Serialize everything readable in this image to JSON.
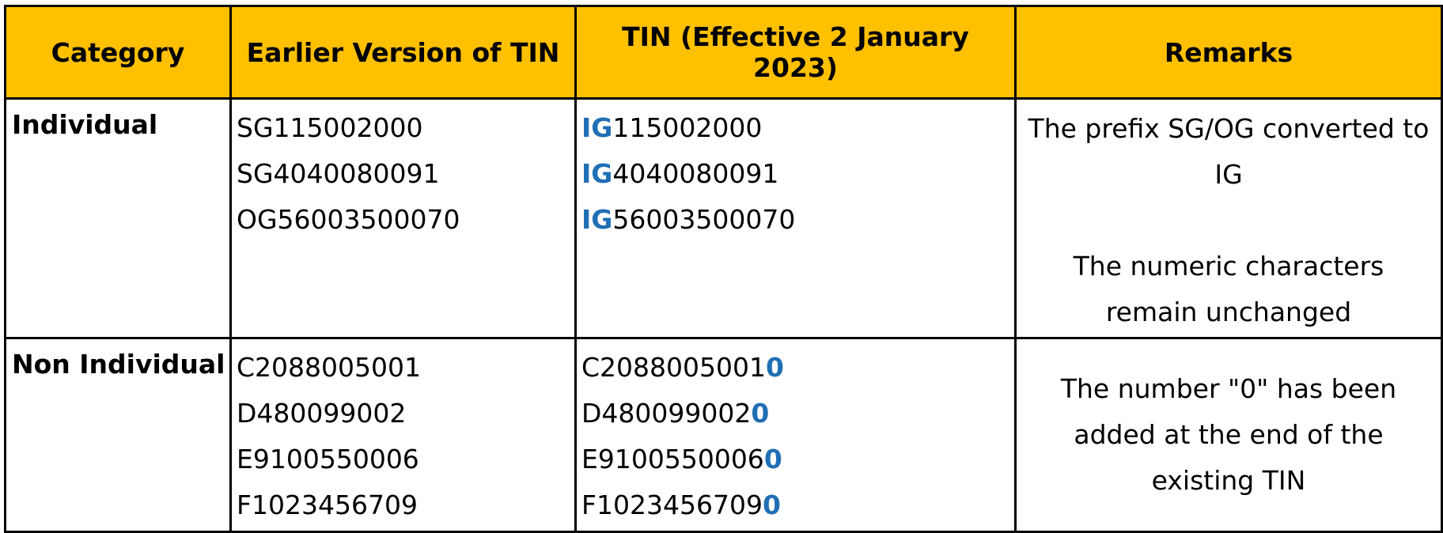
{
  "table": {
    "headers": {
      "category": "Category",
      "earlier": "Earlier Version of TIN",
      "new": "TIN (Effective 2 January 2023)",
      "remarks": "Remarks"
    },
    "rows": [
      {
        "category": "Individual",
        "earlier": [
          "SG115002000",
          "SG4040080091",
          "OG56003500070"
        ],
        "new": [
          {
            "prefix": "IG",
            "body": "115002000",
            "suffix": ""
          },
          {
            "prefix": "IG",
            "body": "4040080091",
            "suffix": ""
          },
          {
            "prefix": "IG",
            "body": "56003500070",
            "suffix": ""
          }
        ],
        "remarks": {
          "para1": [
            "The prefix SG/OG converted to",
            "IG"
          ],
          "para2": [
            "The numeric characters",
            "remain unchanged"
          ]
        }
      },
      {
        "category": "Non Individual",
        "earlier": [
          "C2088005001",
          "D480099002",
          "E9100550006",
          "F1023456709"
        ],
        "new": [
          {
            "prefix": "",
            "body": "C2088005001",
            "suffix": "0"
          },
          {
            "prefix": "",
            "body": "D480099002",
            "suffix": "0"
          },
          {
            "prefix": "",
            "body": "E9100550006",
            "suffix": "0"
          },
          {
            "prefix": "",
            "body": "F1023456709",
            "suffix": "0"
          }
        ],
        "remarks": {
          "para1": [
            "The number \"0\" has been",
            "added at the end of the",
            "existing TIN"
          ]
        }
      }
    ]
  },
  "colors": {
    "header_bg": "#ffc000",
    "highlight": "#1f6fb5",
    "border": "#000000"
  }
}
